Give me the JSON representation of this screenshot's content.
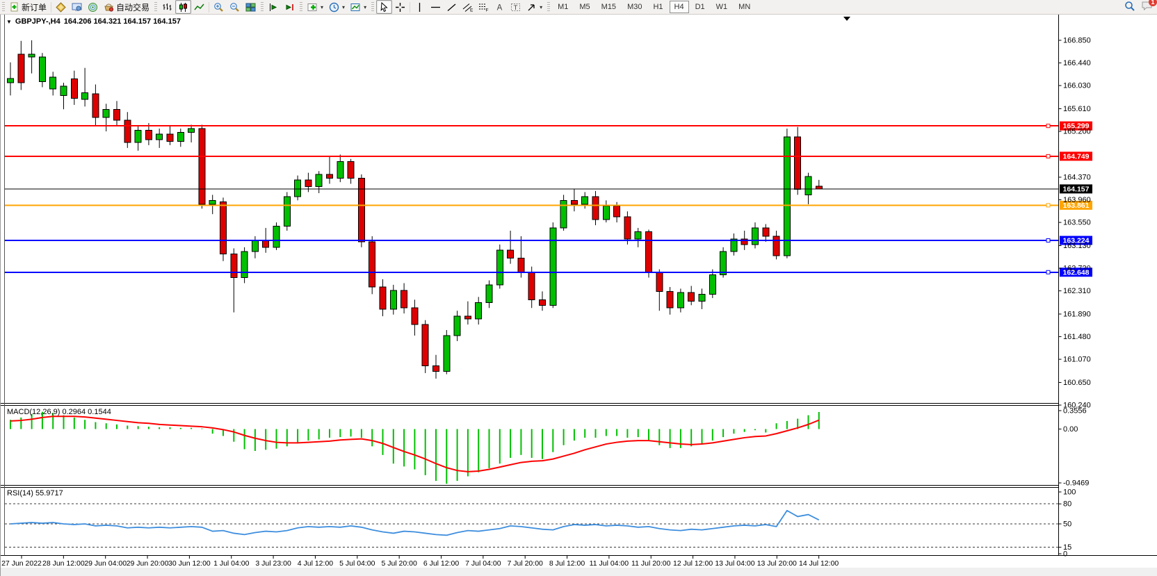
{
  "toolbar": {
    "new_order_label": "新订单",
    "autotrading_label": "自动交易",
    "timeframes": [
      "M1",
      "M5",
      "M15",
      "M30",
      "H1",
      "H4",
      "D1",
      "W1",
      "MN"
    ],
    "active_timeframe": "H4",
    "chat_badge": "1"
  },
  "window": {
    "symbol_header": "GBPJPY-,H4",
    "ohlc": "164.206 164.321 164.157 164.157"
  },
  "chart_data": {
    "type": "candlestick",
    "symbol": "GBPJPY-",
    "timeframe": "H4",
    "up_color": "#00C000",
    "down_color": "#DE0000",
    "wick_color": "#000000",
    "price_range": [
      160.24,
      166.85
    ],
    "candles": [
      [
        166.08,
        166.45,
        165.85,
        166.16
      ],
      [
        166.6,
        166.84,
        165.95,
        166.08
      ],
      [
        166.55,
        166.85,
        166.25,
        166.6
      ],
      [
        166.1,
        166.62,
        166.0,
        166.55
      ],
      [
        165.97,
        166.28,
        165.85,
        166.18
      ],
      [
        165.85,
        166.08,
        165.6,
        166.02
      ],
      [
        166.15,
        166.3,
        165.68,
        165.8
      ],
      [
        165.78,
        166.35,
        165.65,
        165.9
      ],
      [
        165.88,
        166.05,
        165.3,
        165.45
      ],
      [
        165.45,
        165.7,
        165.2,
        165.6
      ],
      [
        165.6,
        165.75,
        165.3,
        165.4
      ],
      [
        165.4,
        165.55,
        164.9,
        165.0
      ],
      [
        165.0,
        165.3,
        164.85,
        165.22
      ],
      [
        165.22,
        165.35,
        164.95,
        165.05
      ],
      [
        165.05,
        165.25,
        164.9,
        165.15
      ],
      [
        165.15,
        165.3,
        164.95,
        165.02
      ],
      [
        165.02,
        165.25,
        164.92,
        165.18
      ],
      [
        165.18,
        165.32,
        165.0,
        165.25
      ],
      [
        165.25,
        165.32,
        163.8,
        163.88
      ],
      [
        163.88,
        164.05,
        163.7,
        163.95
      ],
      [
        163.92,
        164.0,
        162.85,
        162.98
      ],
      [
        162.98,
        163.08,
        161.92,
        162.55
      ],
      [
        162.55,
        163.1,
        162.45,
        163.02
      ],
      [
        163.02,
        163.3,
        162.9,
        163.22
      ],
      [
        163.22,
        163.45,
        163.0,
        163.1
      ],
      [
        163.1,
        163.55,
        163.05,
        163.48
      ],
      [
        163.48,
        164.1,
        163.4,
        164.02
      ],
      [
        164.02,
        164.4,
        163.95,
        164.32
      ],
      [
        164.32,
        164.45,
        164.1,
        164.2
      ],
      [
        164.2,
        164.48,
        164.08,
        164.42
      ],
      [
        164.42,
        164.75,
        164.25,
        164.35
      ],
      [
        164.35,
        164.78,
        164.28,
        164.65
      ],
      [
        164.65,
        164.7,
        164.25,
        164.35
      ],
      [
        164.35,
        164.42,
        163.1,
        163.2
      ],
      [
        163.2,
        163.3,
        162.25,
        162.38
      ],
      [
        162.38,
        162.52,
        161.85,
        161.98
      ],
      [
        161.98,
        162.42,
        161.88,
        162.32
      ],
      [
        162.32,
        162.45,
        161.9,
        162.0
      ],
      [
        162.0,
        162.15,
        161.5,
        161.7
      ],
      [
        161.7,
        161.78,
        160.82,
        160.95
      ],
      [
        160.95,
        161.15,
        160.72,
        160.85
      ],
      [
        160.85,
        161.6,
        160.8,
        161.5
      ],
      [
        161.5,
        161.95,
        161.4,
        161.85
      ],
      [
        161.85,
        162.12,
        161.7,
        161.8
      ],
      [
        161.8,
        162.2,
        161.7,
        162.1
      ],
      [
        162.1,
        162.5,
        162.0,
        162.42
      ],
      [
        162.42,
        163.15,
        162.35,
        163.05
      ],
      [
        163.05,
        163.4,
        162.8,
        162.9
      ],
      [
        162.9,
        163.3,
        162.55,
        162.65
      ],
      [
        162.65,
        162.75,
        162.0,
        162.15
      ],
      [
        162.15,
        162.3,
        161.95,
        162.05
      ],
      [
        162.05,
        163.55,
        162.0,
        163.45
      ],
      [
        163.45,
        164.05,
        163.4,
        163.95
      ],
      [
        163.95,
        164.15,
        163.75,
        163.88
      ],
      [
        163.88,
        164.1,
        163.8,
        164.02
      ],
      [
        164.02,
        164.12,
        163.5,
        163.6
      ],
      [
        163.6,
        163.95,
        163.55,
        163.85
      ],
      [
        163.85,
        163.92,
        163.55,
        163.65
      ],
      [
        163.65,
        163.75,
        163.15,
        163.25
      ],
      [
        163.25,
        163.45,
        163.1,
        163.38
      ],
      [
        163.38,
        163.42,
        162.55,
        162.65
      ],
      [
        162.65,
        162.7,
        161.95,
        162.3
      ],
      [
        162.3,
        162.38,
        161.88,
        162.0
      ],
      [
        162.0,
        162.35,
        161.92,
        162.28
      ],
      [
        162.28,
        162.4,
        162.05,
        162.12
      ],
      [
        162.12,
        162.35,
        161.98,
        162.25
      ],
      [
        162.25,
        162.7,
        162.18,
        162.6
      ],
      [
        162.6,
        163.1,
        162.55,
        163.02
      ],
      [
        163.02,
        163.35,
        162.95,
        163.25
      ],
      [
        163.25,
        163.4,
        163.05,
        163.15
      ],
      [
        163.15,
        163.55,
        163.08,
        163.45
      ],
      [
        163.45,
        163.52,
        163.2,
        163.3
      ],
      [
        163.3,
        163.4,
        162.88,
        162.95
      ],
      [
        162.95,
        165.25,
        162.9,
        165.1
      ],
      [
        165.1,
        165.28,
        164.05,
        164.15
      ],
      [
        164.05,
        164.45,
        163.88,
        164.38
      ],
      [
        164.206,
        164.321,
        164.157,
        164.157
      ]
    ],
    "levels": [
      {
        "price": 165.299,
        "label": "165.299",
        "color": "#FF0000",
        "width": 2
      },
      {
        "price": 164.749,
        "label": "164.749",
        "color": "#FF0000",
        "width": 2
      },
      {
        "price": 164.157,
        "label": "164.157",
        "color": "#000000",
        "width": 1,
        "is_current_price": true
      },
      {
        "price": 163.861,
        "label": "163.861",
        "color": "#FFA500",
        "width": 2
      },
      {
        "price": 163.224,
        "label": "163.224",
        "color": "#0000FF",
        "width": 2
      },
      {
        "price": 162.648,
        "label": "162.648",
        "color": "#0000FF",
        "width": 2
      }
    ],
    "price_axis_ticks": [
      "166.850",
      "166.440",
      "166.030",
      "165.610",
      "165.200",
      "164.370",
      "163.960",
      "163.550",
      "163.130",
      "162.720",
      "162.310",
      "161.890",
      "161.480",
      "161.070",
      "160.650",
      "160.240"
    ],
    "time_labels": [
      "27 Jun 2022",
      "28 Jun 12:00",
      "29 Jun 04:00",
      "29 Jun 20:00",
      "30 Jun 12:00",
      "1 Jul 04:00",
      "3 Jul 23:00",
      "4 Jul 12:00",
      "5 Jul 04:00",
      "5 Jul 20:00",
      "6 Jul 12:00",
      "7 Jul 04:00",
      "7 Jul 20:00",
      "8 Jul 12:00",
      "11 Jul 04:00",
      "11 Jul 20:00",
      "12 Jul 12:00",
      "13 Jul 04:00",
      "13 Jul 20:00",
      "14 Jul 12:00"
    ],
    "macd": {
      "label": "MACD(12,26,9) 0.2964 0.1544",
      "histogram_color": "#00C000",
      "signal_color": "#FF0000",
      "ylim": [
        -0.9469,
        0.3556
      ],
      "ticks": [
        "0.3556",
        "0.00",
        "-0.9469"
      ],
      "histogram": [
        0.16,
        0.2,
        0.26,
        0.3,
        0.28,
        0.24,
        0.2,
        0.16,
        0.12,
        0.1,
        0.08,
        0.06,
        0.05,
        0.04,
        0.03,
        0.03,
        0.02,
        0.02,
        0.01,
        -0.08,
        -0.12,
        -0.22,
        -0.35,
        -0.38,
        -0.36,
        -0.34,
        -0.3,
        -0.25,
        -0.2,
        -0.18,
        -0.15,
        -0.14,
        -0.13,
        -0.15,
        -0.3,
        -0.45,
        -0.6,
        -0.65,
        -0.7,
        -0.8,
        -0.9,
        -0.95,
        -0.9,
        -0.82,
        -0.75,
        -0.68,
        -0.6,
        -0.5,
        -0.45,
        -0.5,
        -0.52,
        -0.4,
        -0.28,
        -0.2,
        -0.15,
        -0.15,
        -0.12,
        -0.12,
        -0.15,
        -0.14,
        -0.2,
        -0.28,
        -0.33,
        -0.33,
        -0.3,
        -0.26,
        -0.2,
        -0.14,
        -0.08,
        -0.05,
        -0.02,
        -0.06,
        0.1,
        0.14,
        0.18,
        0.24,
        0.2964
      ],
      "signal": [
        0.14,
        0.15,
        0.17,
        0.2,
        0.22,
        0.22,
        0.22,
        0.21,
        0.19,
        0.17,
        0.15,
        0.13,
        0.11,
        0.1,
        0.08,
        0.07,
        0.06,
        0.05,
        0.04,
        0.02,
        -0.01,
        -0.05,
        -0.11,
        -0.16,
        -0.2,
        -0.23,
        -0.24,
        -0.24,
        -0.23,
        -0.22,
        -0.21,
        -0.19,
        -0.18,
        -0.17,
        -0.2,
        -0.25,
        -0.32,
        -0.39,
        -0.45,
        -0.52,
        -0.6,
        -0.67,
        -0.72,
        -0.74,
        -0.73,
        -0.7,
        -0.66,
        -0.62,
        -0.58,
        -0.56,
        -0.55,
        -0.52,
        -0.47,
        -0.42,
        -0.36,
        -0.31,
        -0.26,
        -0.23,
        -0.21,
        -0.2,
        -0.2,
        -0.22,
        -0.24,
        -0.26,
        -0.27,
        -0.26,
        -0.24,
        -0.21,
        -0.18,
        -0.15,
        -0.13,
        -0.12,
        -0.08,
        -0.03,
        0.02,
        0.08,
        0.1544
      ]
    },
    "rsi": {
      "label": "RSI(14) 55.9717",
      "line_color": "#3E8EDE",
      "levels": [
        80,
        50,
        15
      ],
      "ticks": [
        "100",
        "80",
        "50",
        "15",
        "0"
      ],
      "ylim": [
        0,
        100
      ],
      "values": [
        50,
        51,
        52,
        51,
        52,
        50,
        49,
        50,
        47,
        48,
        47,
        44,
        45,
        44,
        45,
        44,
        45,
        46,
        45,
        39,
        40,
        36,
        34,
        37,
        39,
        38,
        40,
        44,
        46,
        45,
        46,
        45,
        47,
        45,
        41,
        38,
        36,
        39,
        38,
        36,
        34,
        33,
        37,
        40,
        39,
        41,
        43,
        47,
        46,
        44,
        42,
        41,
        46,
        49,
        48,
        49,
        47,
        48,
        47,
        45,
        46,
        43,
        41,
        40,
        42,
        41,
        43,
        45,
        47,
        48,
        47,
        49,
        46,
        70,
        61,
        64,
        55.97
      ]
    }
  }
}
